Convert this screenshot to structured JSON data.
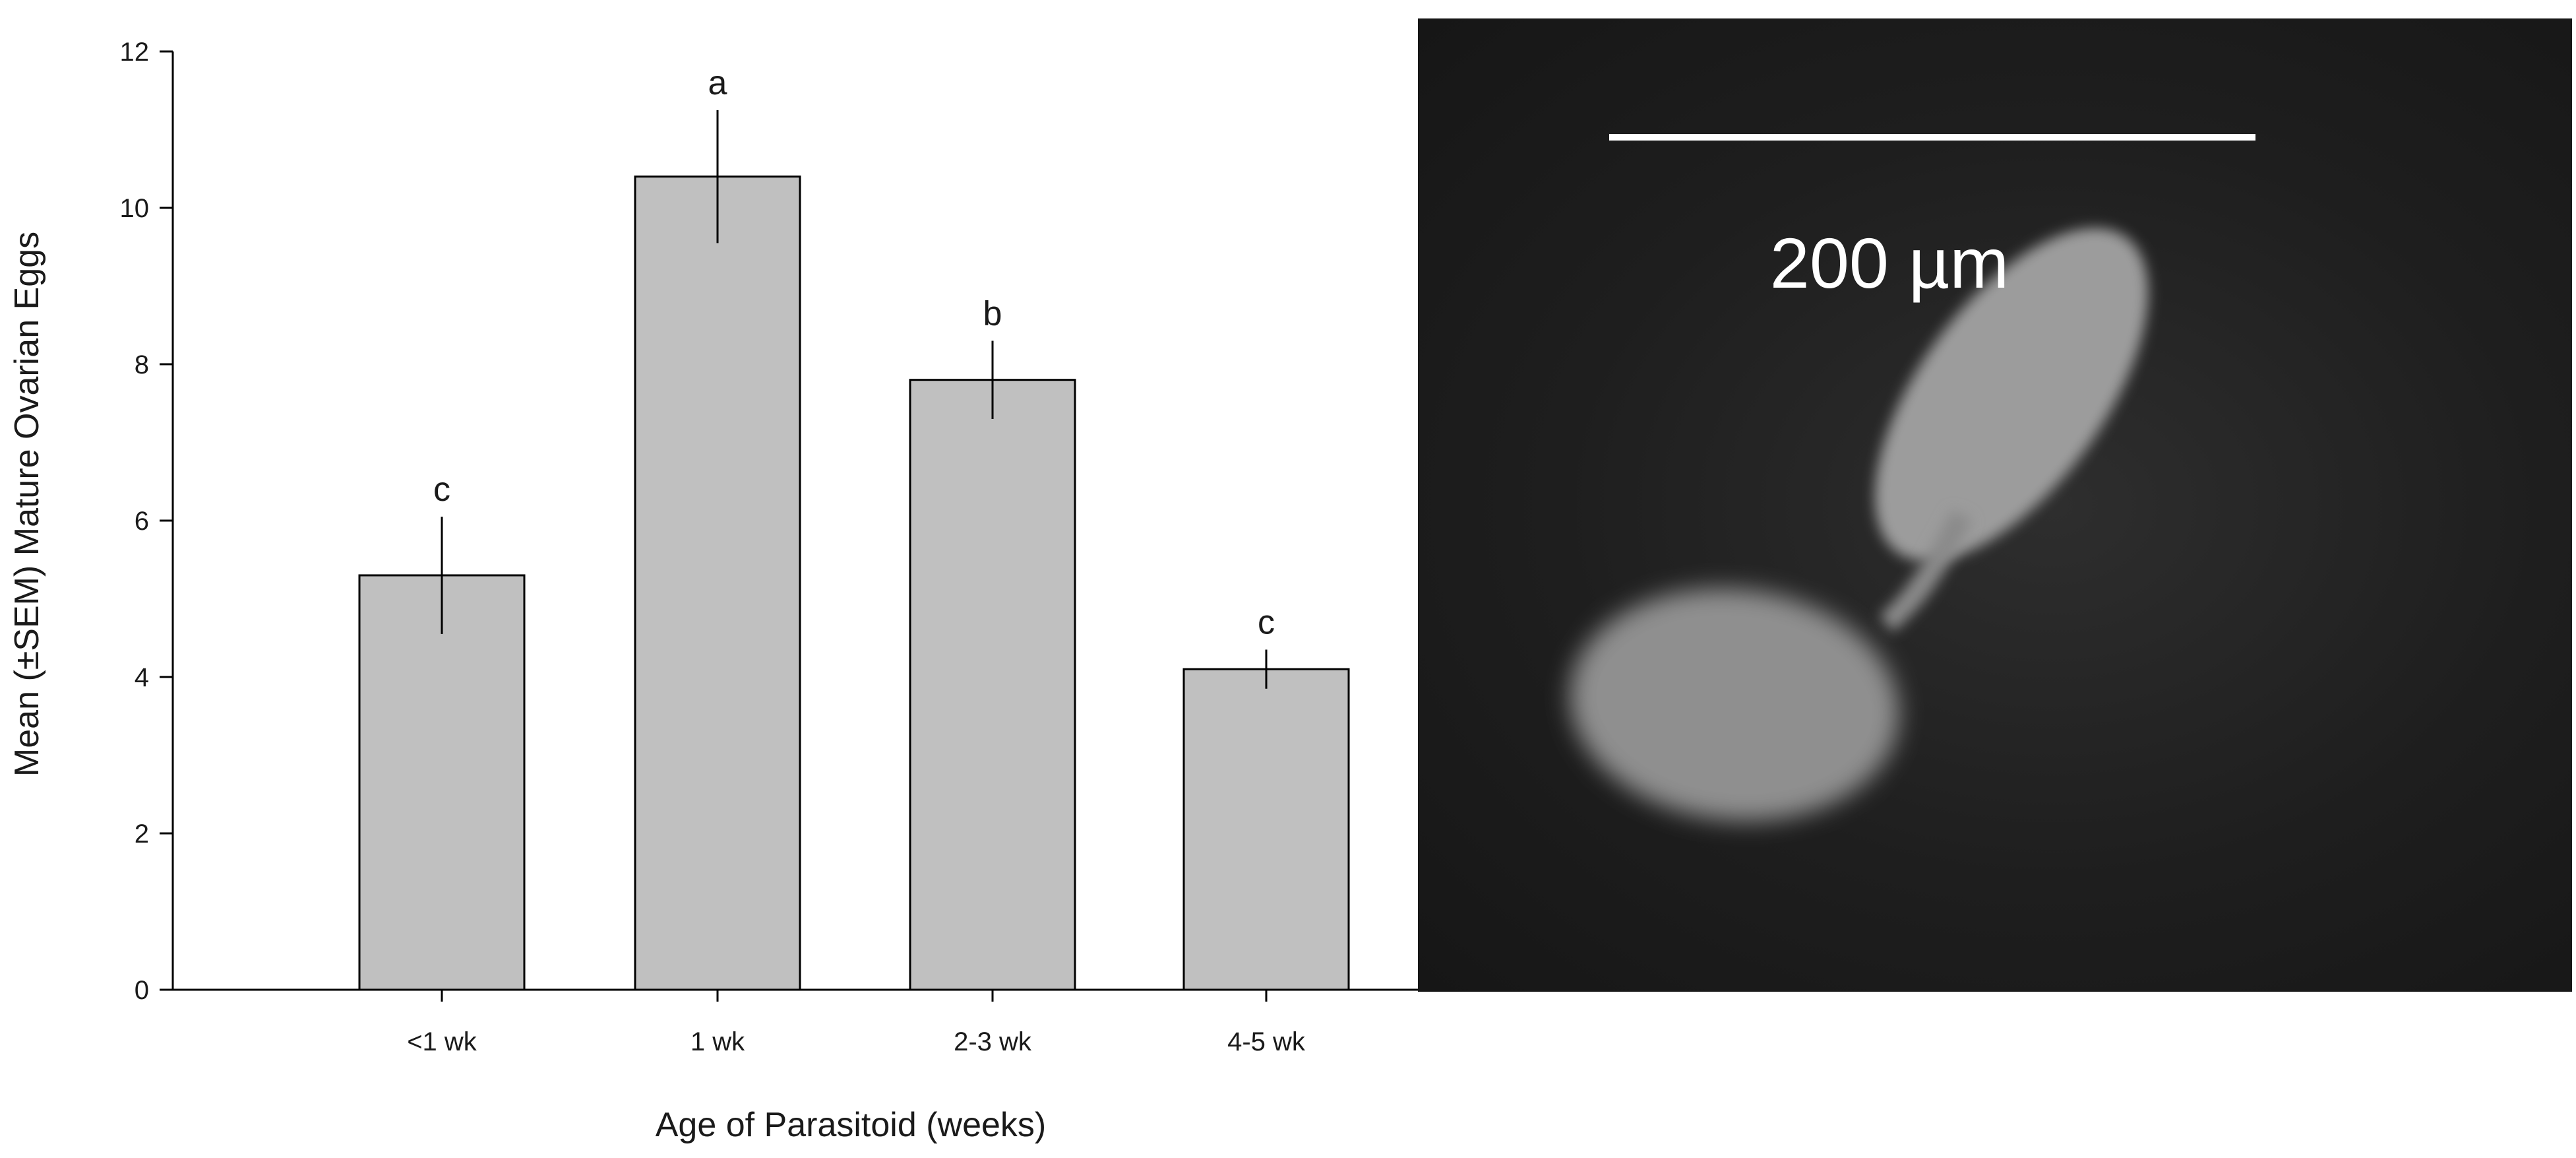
{
  "chart_data": {
    "type": "bar",
    "categories": [
      "<1 wk",
      "1 wk",
      "2-3 wk",
      "4-5 wk"
    ],
    "values": [
      5.3,
      10.4,
      7.8,
      4.1
    ],
    "error": [
      0.75,
      0.85,
      0.5,
      0.25
    ],
    "significance": [
      "c",
      "a",
      "b",
      "c"
    ],
    "xlabel": "Age of Parasitoid (weeks)",
    "ylabel": "Mean (±SEM) Mature Ovarian Eggs",
    "ylim": [
      0,
      12
    ],
    "yticks": [
      0,
      2,
      4,
      6,
      8,
      10,
      12
    ],
    "ytick_labels": [
      "0",
      "2",
      "4",
      "6",
      "8",
      "10",
      "12"
    ],
    "grid": false,
    "bar_color": "#c0c0c0",
    "bar_edge_color": "#000000"
  },
  "micrograph": {
    "scale_bar_label": "200 µm",
    "background_color": "#1e1e1e",
    "specimen_color": "#9a9a9a"
  }
}
